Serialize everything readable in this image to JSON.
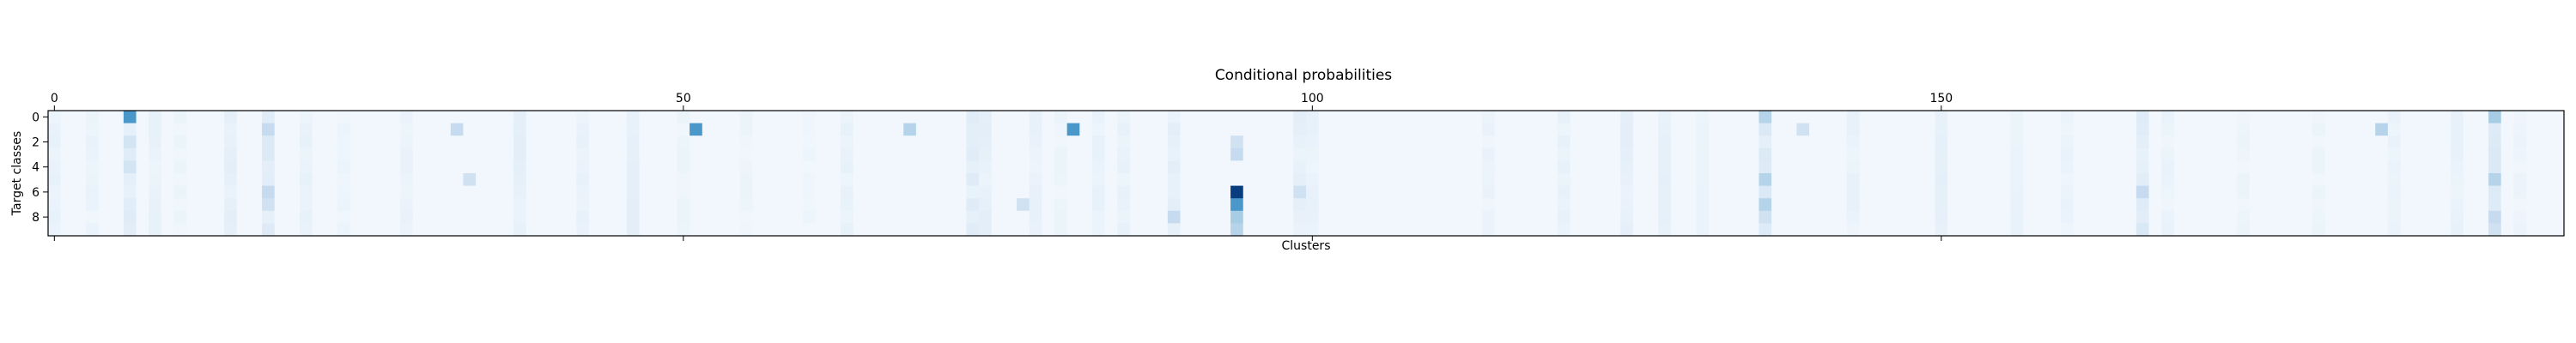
{
  "chart_data": {
    "type": "heatmap",
    "title": "Conditional probabilities",
    "xlabel": "Clusters",
    "ylabel": "Target classes",
    "x_range": [
      0,
      199
    ],
    "y_range": [
      0,
      9
    ],
    "x_ticks": [
      0,
      50,
      100,
      150
    ],
    "y_ticks": [
      0,
      2,
      4,
      6,
      8
    ],
    "x_tick_labels": [
      "0",
      "50",
      "100",
      "150"
    ],
    "y_tick_labels": [
      "0",
      "2",
      "4",
      "6",
      "8"
    ],
    "x_ticks_position": "top",
    "colormap": [
      "#f7fbff",
      "#deebf7",
      "#c6dbef",
      "#9ecae1",
      "#6baed6",
      "#4292c6",
      "#2171b5",
      "#08519c",
      "#08306b"
    ],
    "value_range": [
      0,
      1
    ],
    "grid": false,
    "rows": 10,
    "cols": 200,
    "default_value": 0.03,
    "cells": [
      {
        "x": 6,
        "y": 0,
        "v": 0.6
      },
      {
        "x": 51,
        "y": 1,
        "v": 0.6
      },
      {
        "x": 81,
        "y": 1,
        "v": 0.6
      },
      {
        "x": 68,
        "y": 1,
        "v": 0.3
      },
      {
        "x": 32,
        "y": 1,
        "v": 0.25
      },
      {
        "x": 194,
        "y": 0,
        "v": 0.35
      },
      {
        "x": 185,
        "y": 1,
        "v": 0.3
      },
      {
        "x": 94,
        "y": 6,
        "v": 0.95
      },
      {
        "x": 94,
        "y": 7,
        "v": 0.6
      },
      {
        "x": 94,
        "y": 8,
        "v": 0.35
      },
      {
        "x": 94,
        "y": 9,
        "v": 0.3
      },
      {
        "x": 94,
        "y": 3,
        "v": 0.25
      },
      {
        "x": 94,
        "y": 2,
        "v": 0.2
      },
      {
        "x": 17,
        "y": 1,
        "v": 0.25
      },
      {
        "x": 17,
        "y": 6,
        "v": 0.25
      },
      {
        "x": 17,
        "y": 7,
        "v": 0.2
      },
      {
        "x": 136,
        "y": 0,
        "v": 0.3
      },
      {
        "x": 136,
        "y": 5,
        "v": 0.3
      },
      {
        "x": 136,
        "y": 7,
        "v": 0.3
      },
      {
        "x": 136,
        "y": 8,
        "v": 0.2
      },
      {
        "x": 194,
        "y": 5,
        "v": 0.3
      },
      {
        "x": 194,
        "y": 8,
        "v": 0.25
      },
      {
        "x": 194,
        "y": 9,
        "v": 0.2
      },
      {
        "x": 166,
        "y": 6,
        "v": 0.25
      },
      {
        "x": 166,
        "y": 9,
        "v": 0.15
      },
      {
        "x": 99,
        "y": 6,
        "v": 0.2
      },
      {
        "x": 89,
        "y": 8,
        "v": 0.25
      },
      {
        "x": 6,
        "y": 2,
        "v": 0.18
      },
      {
        "x": 6,
        "y": 4,
        "v": 0.18
      },
      {
        "x": 139,
        "y": 1,
        "v": 0.2
      },
      {
        "x": 33,
        "y": 5,
        "v": 0.2
      },
      {
        "x": 77,
        "y": 7,
        "v": 0.2
      }
    ],
    "column_tints": [
      {
        "x": 0,
        "v": 0.08
      },
      {
        "x": 3,
        "v": 0.07
      },
      {
        "x": 6,
        "v": 0.12
      },
      {
        "x": 8,
        "v": 0.08
      },
      {
        "x": 10,
        "v": 0.06
      },
      {
        "x": 14,
        "v": 0.1
      },
      {
        "x": 17,
        "v": 0.14
      },
      {
        "x": 20,
        "v": 0.08
      },
      {
        "x": 23,
        "v": 0.06
      },
      {
        "x": 28,
        "v": 0.07
      },
      {
        "x": 37,
        "v": 0.1
      },
      {
        "x": 42,
        "v": 0.08
      },
      {
        "x": 46,
        "v": 0.1
      },
      {
        "x": 50,
        "v": 0.06
      },
      {
        "x": 55,
        "v": 0.06
      },
      {
        "x": 60,
        "v": 0.05
      },
      {
        "x": 63,
        "v": 0.08
      },
      {
        "x": 73,
        "v": 0.12
      },
      {
        "x": 74,
        "v": 0.1
      },
      {
        "x": 78,
        "v": 0.08
      },
      {
        "x": 80,
        "v": 0.06
      },
      {
        "x": 83,
        "v": 0.08
      },
      {
        "x": 85,
        "v": 0.08
      },
      {
        "x": 89,
        "v": 0.1
      },
      {
        "x": 99,
        "v": 0.1
      },
      {
        "x": 100,
        "v": 0.08
      },
      {
        "x": 114,
        "v": 0.07
      },
      {
        "x": 120,
        "v": 0.08
      },
      {
        "x": 125,
        "v": 0.1
      },
      {
        "x": 128,
        "v": 0.09
      },
      {
        "x": 131,
        "v": 0.08
      },
      {
        "x": 136,
        "v": 0.14
      },
      {
        "x": 143,
        "v": 0.08
      },
      {
        "x": 150,
        "v": 0.09
      },
      {
        "x": 156,
        "v": 0.08
      },
      {
        "x": 160,
        "v": 0.07
      },
      {
        "x": 166,
        "v": 0.12
      },
      {
        "x": 168,
        "v": 0.07
      },
      {
        "x": 174,
        "v": 0.06
      },
      {
        "x": 180,
        "v": 0.06
      },
      {
        "x": 186,
        "v": 0.07
      },
      {
        "x": 191,
        "v": 0.08
      },
      {
        "x": 194,
        "v": 0.14
      },
      {
        "x": 196,
        "v": 0.06
      }
    ]
  }
}
